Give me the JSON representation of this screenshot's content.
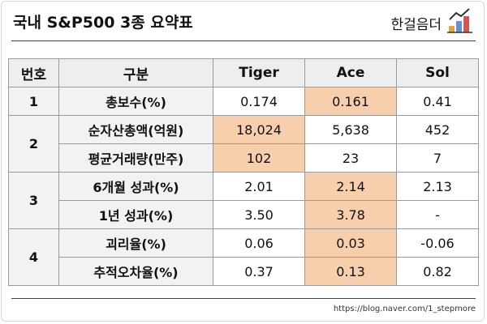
{
  "header": {
    "title": "국내 S&P500 3종 요약표",
    "brand": "한걸음더"
  },
  "table": {
    "columns": [
      "번호",
      "구분",
      "Tiger",
      "Ace",
      "Sol"
    ],
    "groups": [
      {
        "no": "1",
        "rows": [
          {
            "label": "총보수(%)",
            "cells": [
              "0.174",
              "0.161",
              "0.41"
            ],
            "highlight": 1
          }
        ]
      },
      {
        "no": "2",
        "rows": [
          {
            "label": "순자산총액(억원)",
            "cells": [
              "18,024",
              "5,638",
              "452"
            ],
            "highlight": 0
          },
          {
            "label": "평균거래량(만주)",
            "cells": [
              "102",
              "23",
              "7"
            ],
            "highlight": 0
          }
        ]
      },
      {
        "no": "3",
        "rows": [
          {
            "label": "6개월 성과(%)",
            "cells": [
              "2.01",
              "2.14",
              "2.13"
            ],
            "highlight": 1
          },
          {
            "label": "1년 성과(%)",
            "cells": [
              "3.50",
              "3.78",
              "-"
            ],
            "highlight": 1
          }
        ]
      },
      {
        "no": "4",
        "rows": [
          {
            "label": "괴리율(%)",
            "cells": [
              "0.06",
              "0.03",
              "-0.06"
            ],
            "highlight": 1
          },
          {
            "label": "추적오차율(%)",
            "cells": [
              "0.37",
              "0.13",
              "0.82"
            ],
            "highlight": 1
          }
        ]
      }
    ]
  },
  "footer": {
    "url": "https://blog.naver.com/1_stepmore"
  }
}
